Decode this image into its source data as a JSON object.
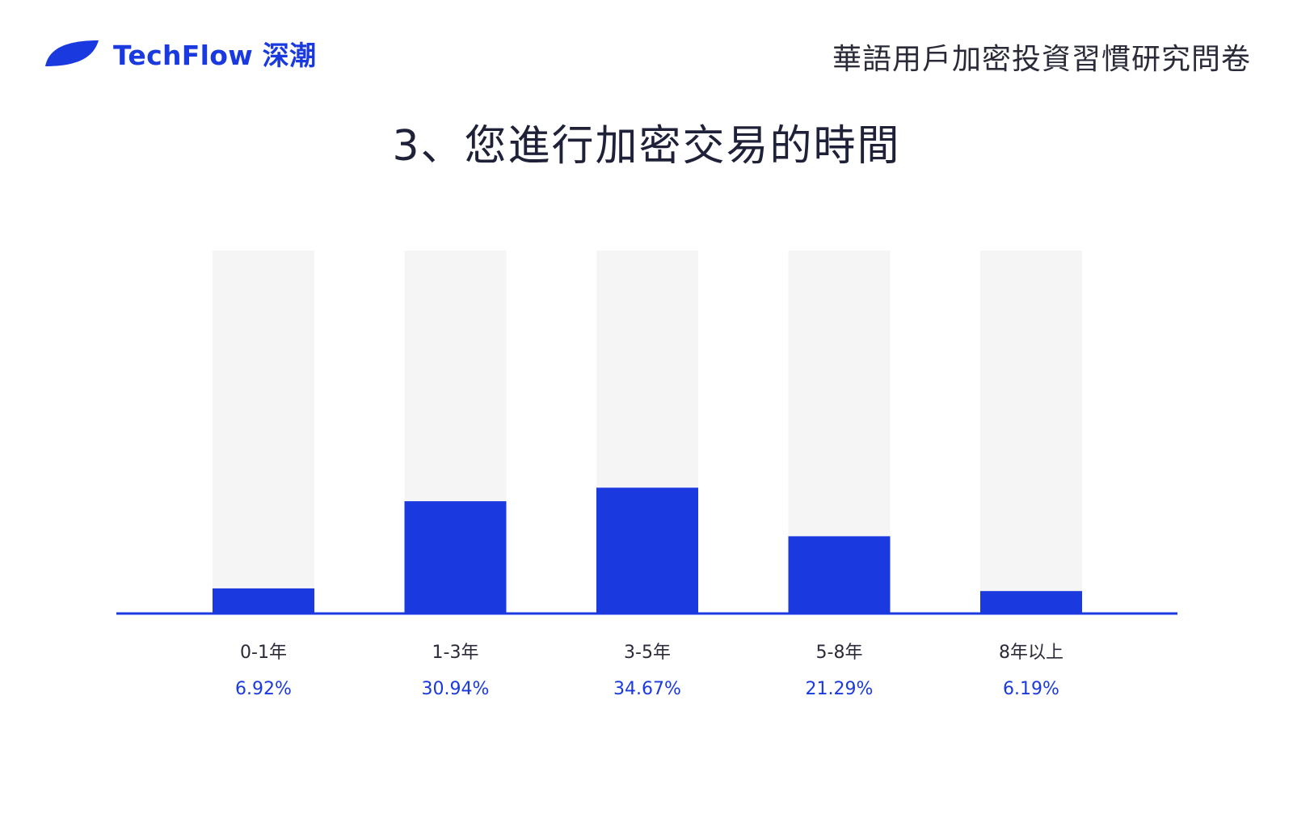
{
  "brand": {
    "name": "TechFlow 深潮",
    "logo_icon": "leaf-icon",
    "color": "#1a3adf"
  },
  "survey_title": "華語用戶加密投資習慣研究問卷",
  "chart_data": {
    "type": "bar",
    "title": "3、您進行加密交易的時間",
    "categories": [
      "0-1年",
      "1-3年",
      "3-5年",
      "5-8年",
      "8年以上"
    ],
    "values": [
      6.92,
      30.94,
      34.67,
      21.29,
      6.19
    ],
    "value_labels": [
      "6.92%",
      "30.94%",
      "34.67%",
      "21.29%",
      "6.19%"
    ],
    "ylim": [
      0,
      100
    ],
    "xlabel": "",
    "ylabel": "",
    "grid": false,
    "colors": {
      "bar": "#1a3adf",
      "track": "#f5f5f5",
      "baseline": "#1a3adf",
      "value_text": "#1a3adf"
    }
  }
}
